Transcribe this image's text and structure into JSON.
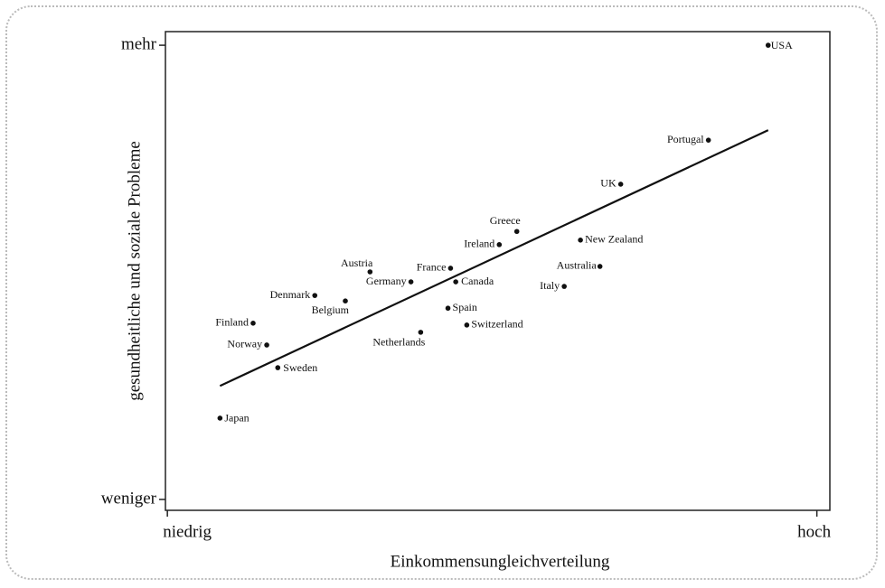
{
  "chart_data": {
    "type": "scatter",
    "xlabel": "Einkommensungleichverteilung",
    "ylabel": "gesundheitliche und soziale Probleme",
    "xlim": [
      -0.3,
      102
    ],
    "ylim": [
      -2.4,
      103
    ],
    "xticks": [
      {
        "value": 0,
        "label": "niedrig"
      },
      {
        "value": 100,
        "label": "hoch"
      }
    ],
    "yticks": [
      {
        "value": 0,
        "label": "weniger"
      },
      {
        "value": 100,
        "label": "mehr"
      }
    ],
    "color": "#111111",
    "labels": [
      "USA",
      "Portugal",
      "UK",
      "Greece",
      "Ireland",
      "New Zealand",
      "Austria",
      "France",
      "Australia",
      "Germany",
      "Canada",
      "Italy",
      "Denmark",
      "Belgium",
      "Spain",
      "Finland",
      "Switzerland",
      "Netherlands",
      "Norway",
      "Sweden",
      "Japan"
    ],
    "x": [
      92.5,
      83.3,
      69.8,
      53.8,
      51.1,
      63.6,
      31.2,
      43.6,
      66.6,
      37.5,
      44.4,
      61.1,
      22.7,
      27.4,
      43.2,
      13.2,
      46.1,
      39.0,
      15.3,
      17.0,
      8.1
    ],
    "y": [
      100,
      79.1,
      69.4,
      59.0,
      56.1,
      57.1,
      50.1,
      50.9,
      51.3,
      47.9,
      47.9,
      46.9,
      44.9,
      43.7,
      42.1,
      38.8,
      38.4,
      36.8,
      34.0,
      29.0,
      17.9
    ],
    "trend": {
      "x": [
        8.1,
        92.5
      ],
      "y": [
        25.0,
        81.3
      ]
    }
  }
}
